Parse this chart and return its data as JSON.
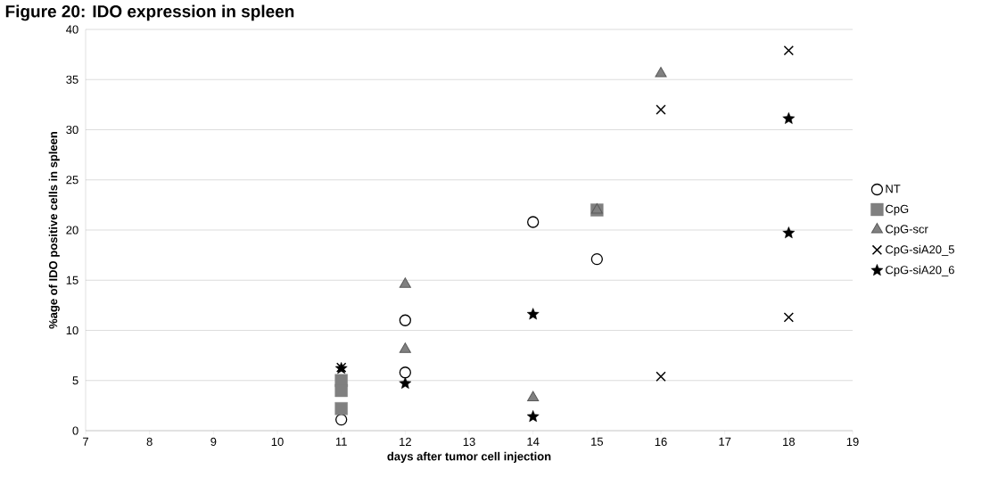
{
  "chart_data": {
    "type": "scatter",
    "title": "Figure 20: IDO expression in spleen",
    "xlabel": "days after tumor cell injection",
    "ylabel": "%age of IDO positive cells in spleen",
    "xlim": [
      7,
      19
    ],
    "xticks": [
      7,
      8,
      9,
      10,
      11,
      12,
      13,
      14,
      15,
      16,
      17,
      18,
      19
    ],
    "ylim": [
      0,
      40
    ],
    "yticks": [
      0,
      5,
      10,
      15,
      20,
      25,
      30,
      35,
      40
    ],
    "grid": "y",
    "legend": "right",
    "series": [
      {
        "name": "NT",
        "color": "#000000",
        "marker": "circle",
        "x": [
          11,
          12,
          12,
          14,
          15
        ],
        "values": [
          1.1,
          11.0,
          5.8,
          20.8,
          17.1
        ]
      },
      {
        "name": "CpG",
        "color": "#808080",
        "marker": "square",
        "x": [
          11,
          11,
          11,
          15
        ],
        "values": [
          5.0,
          4.0,
          2.2,
          22.0
        ]
      },
      {
        "name": "CpG-scr",
        "color": "#808080",
        "marker": "triangle",
        "x": [
          12,
          12,
          14,
          15,
          16
        ],
        "values": [
          14.6,
          8.1,
          3.3,
          22.0,
          35.6
        ]
      },
      {
        "name": "CpG-siA20_5",
        "color": "#000000",
        "marker": "cross",
        "x": [
          11,
          16,
          16,
          18,
          18
        ],
        "values": [
          6.3,
          32.0,
          5.4,
          37.9,
          11.3
        ]
      },
      {
        "name": "CpG-siA20_6",
        "color": "#000000",
        "marker": "star",
        "x": [
          11,
          12,
          14,
          14,
          18,
          18
        ],
        "values": [
          6.2,
          4.7,
          11.6,
          1.4,
          31.1,
          19.7
        ]
      }
    ]
  }
}
